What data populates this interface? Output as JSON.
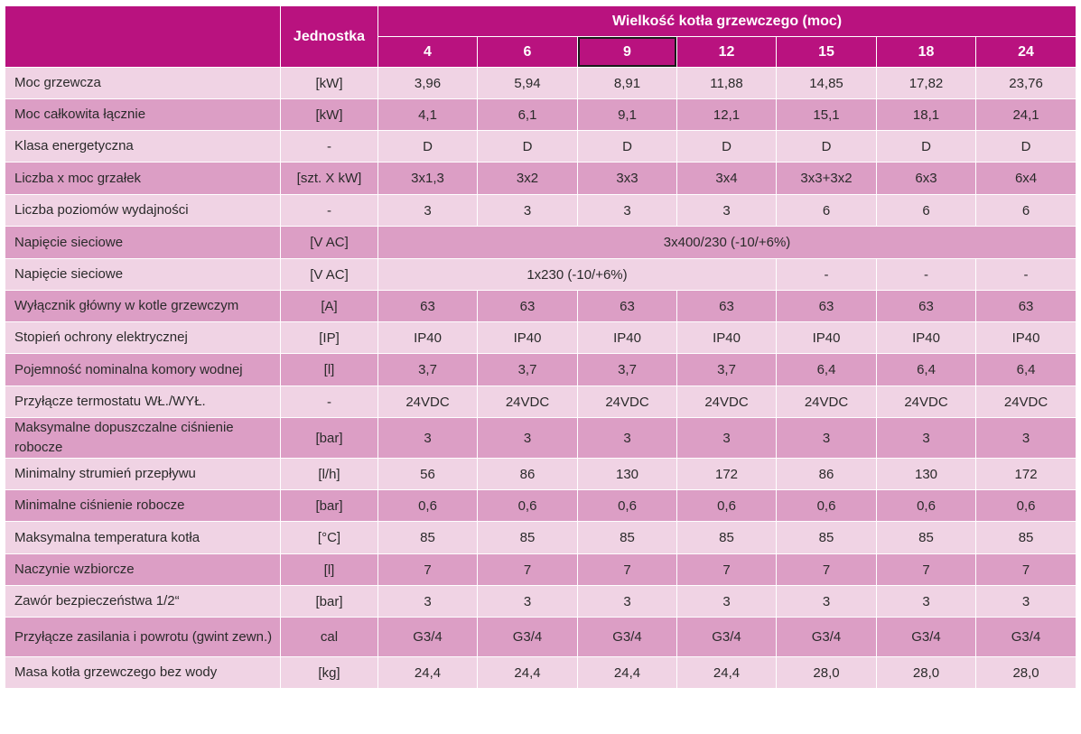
{
  "header": {
    "unit_label": "Jednostka",
    "group_label": "Wielkość kotła grzewczego (moc)",
    "sizes": [
      "4",
      "6",
      "9",
      "12",
      "15",
      "18",
      "24"
    ]
  },
  "rows": [
    {
      "name": "Moc grzewcza",
      "unit": "[kW]",
      "values": [
        "3,96",
        "5,94",
        "8,91",
        "11,88",
        "14,85",
        "17,82",
        "23,76"
      ]
    },
    {
      "name": "Moc całkowita łącznie",
      "unit": "[kW]",
      "values": [
        "4,1",
        "6,1",
        "9,1",
        "12,1",
        "15,1",
        "18,1",
        "24,1"
      ]
    },
    {
      "name": "Klasa energetyczna",
      "unit": "-",
      "values": [
        "D",
        "D",
        "D",
        "D",
        "D",
        "D",
        "D"
      ]
    },
    {
      "name": "Liczba x moc grzałek",
      "unit": "[szt. X kW]",
      "values": [
        "3x1,3",
        "3x2",
        "3x3",
        "3x4",
        "3x3+3x2",
        "6x3",
        "6x4"
      ]
    },
    {
      "name": "Liczba poziomów wydajności",
      "unit": "-",
      "values": [
        "3",
        "3",
        "3",
        "3",
        "6",
        "6",
        "6"
      ]
    },
    {
      "name": "Napięcie sieciowe",
      "unit": "[V AC]",
      "merged_all": "3x400/230 (-10/+6%)"
    },
    {
      "name": "Napięcie sieciowe",
      "unit": "[V AC]",
      "merged_first4": "1x230 (-10/+6%)",
      "values_last3": [
        "-",
        "-",
        "-"
      ]
    },
    {
      "name": "Wyłącznik główny w kotle grzewczym",
      "unit": "[A]",
      "values": [
        "63",
        "63",
        "63",
        "63",
        "63",
        "63",
        "63"
      ]
    },
    {
      "name": "Stopień ochrony elektrycznej",
      "unit": "[IP]",
      "values": [
        "IP40",
        "IP40",
        "IP40",
        "IP40",
        "IP40",
        "IP40",
        "IP40"
      ]
    },
    {
      "name": "Pojemność nominalna komory wodnej",
      "unit": "[l]",
      "values": [
        "3,7",
        "3,7",
        "3,7",
        "3,7",
        "6,4",
        "6,4",
        "6,4"
      ]
    },
    {
      "name": "Przyłącze termostatu WŁ./WYŁ.",
      "unit": "-",
      "values": [
        "24VDC",
        "24VDC",
        "24VDC",
        "24VDC",
        "24VDC",
        "24VDC",
        "24VDC"
      ]
    },
    {
      "name": "Maksymalne dopuszczalne ciśnienie robocze",
      "unit": "[bar]",
      "values": [
        "3",
        "3",
        "3",
        "3",
        "3",
        "3",
        "3"
      ]
    },
    {
      "name": "Minimalny strumień przepływu",
      "unit": "[l/h]",
      "values": [
        "56",
        "86",
        "130",
        "172",
        "86",
        "130",
        "172"
      ]
    },
    {
      "name": "Minimalne ciśnienie robocze",
      "unit": "[bar]",
      "values": [
        "0,6",
        "0,6",
        "0,6",
        "0,6",
        "0,6",
        "0,6",
        "0,6"
      ]
    },
    {
      "name": "Maksymalna temperatura kotła",
      "unit": "[°C]",
      "values": [
        "85",
        "85",
        "85",
        "85",
        "85",
        "85",
        "85"
      ]
    },
    {
      "name": "Naczynie wzbiorcze",
      "unit": "[l]",
      "values": [
        "7",
        "7",
        "7",
        "7",
        "7",
        "7",
        "7"
      ]
    },
    {
      "name": "Zawór bezpieczeństwa 1/2“",
      "unit": "[bar]",
      "values": [
        "3",
        "3",
        "3",
        "3",
        "3",
        "3",
        "3"
      ]
    },
    {
      "name": "Przyłącze zasilania i powrotu (gwint zewn.)",
      "unit": "cal",
      "values": [
        "G3/4",
        "G3/4",
        "G3/4",
        "G3/4",
        "G3/4",
        "G3/4",
        "G3/4"
      ]
    },
    {
      "name": "Masa kotła grzewczego bez wody",
      "unit": "[kg]",
      "values": [
        "24,4",
        "24,4",
        "24,4",
        "24,4",
        "28,0",
        "28,0",
        "28,0"
      ]
    }
  ],
  "colors": {
    "header": "#b9127f",
    "row_light": "#f0d3e4",
    "row_dark": "#dc9ec5",
    "selected_border": "#1a1a1a"
  }
}
